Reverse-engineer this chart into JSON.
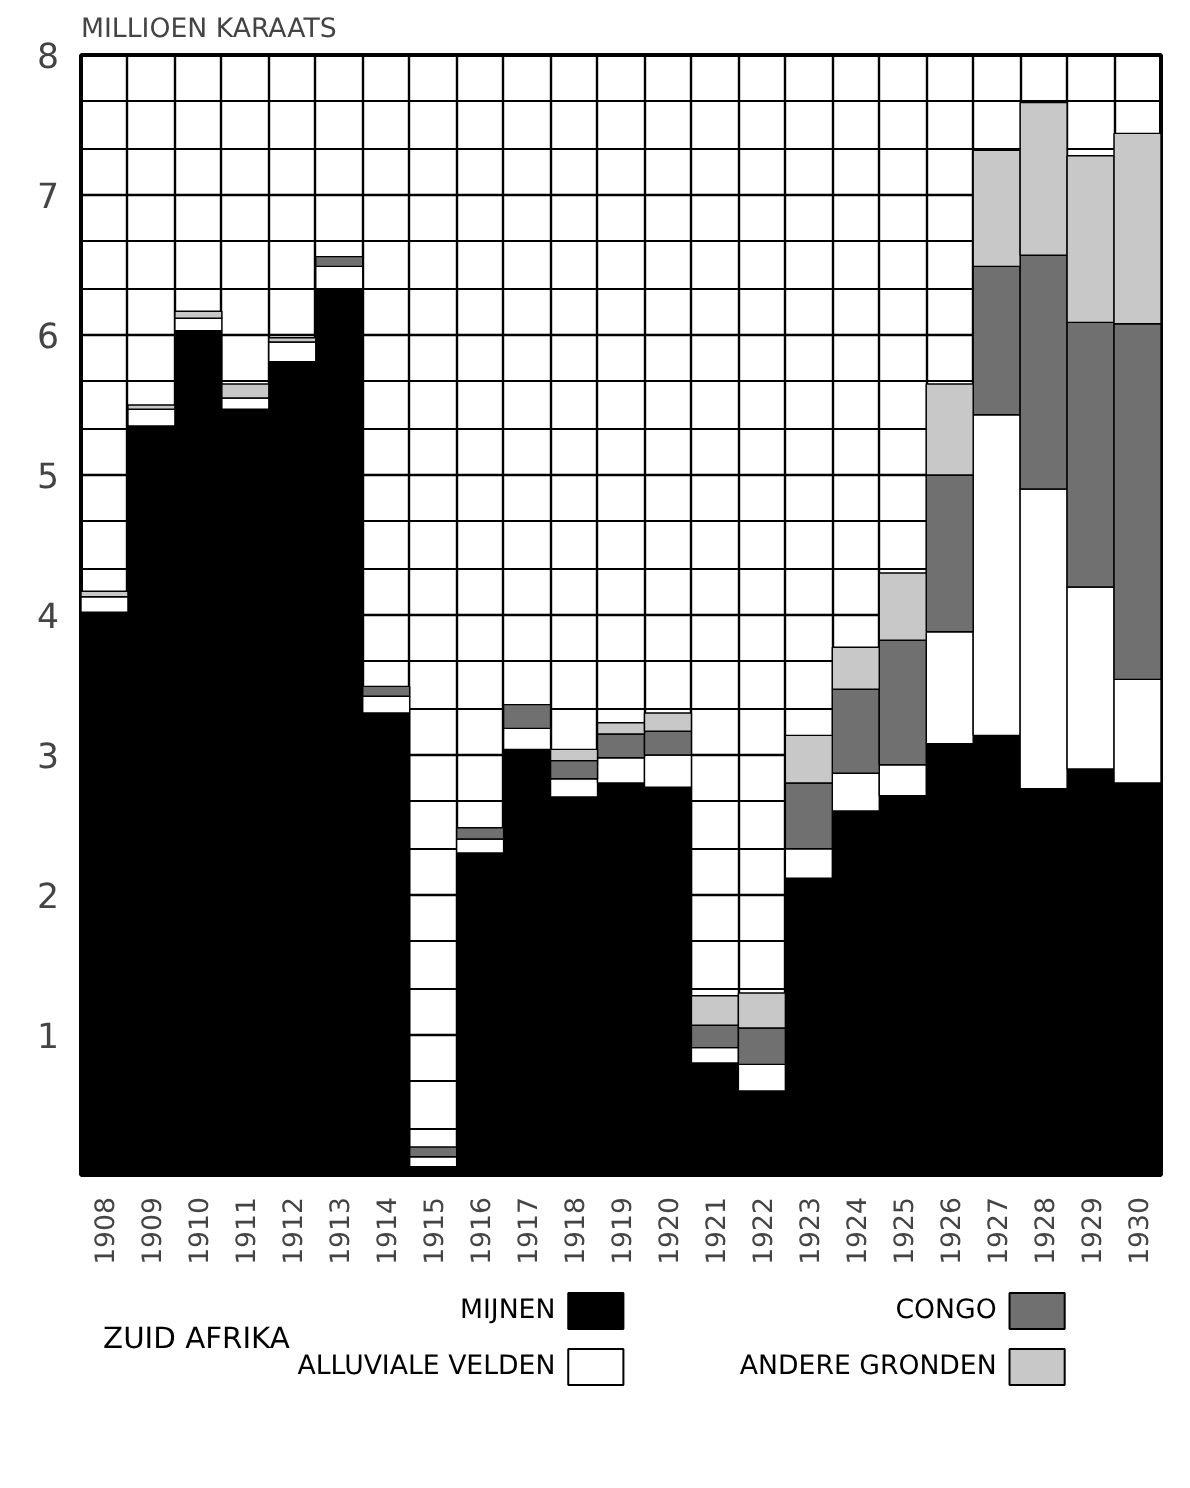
{
  "chart_data": {
    "type": "bar",
    "stacked": true,
    "ylabel": "MILLIOEN KARAATS",
    "legend_title": "ZUID AFRIKA",
    "legend": "bottom",
    "grid": true,
    "ylim": [
      0,
      8
    ],
    "yticks": [
      1,
      2,
      3,
      4,
      5,
      6,
      7,
      8
    ],
    "categories": [
      "1908",
      "1909",
      "1910",
      "1911",
      "1912",
      "1913",
      "1914",
      "1915",
      "1916",
      "1917",
      "1918",
      "1919",
      "1920",
      "1921",
      "1922",
      "1923",
      "1924",
      "1925",
      "1926",
      "1927",
      "1928",
      "1929",
      "1930"
    ],
    "series": [
      {
        "name": "MIJNEN",
        "color": "#000000",
        "values": [
          4.02,
          5.35,
          6.03,
          5.47,
          5.81,
          6.33,
          3.3,
          0.06,
          2.3,
          3.04,
          2.7,
          2.8,
          2.77,
          0.8,
          0.6,
          2.12,
          2.6,
          2.71,
          3.08,
          3.14,
          2.76,
          2.9,
          2.8
        ]
      },
      {
        "name": "ALLUVIALE VELDEN",
        "color": "#ffffff",
        "values": [
          0.11,
          0.12,
          0.09,
          0.08,
          0.14,
          0.16,
          0.12,
          0.07,
          0.1,
          0.15,
          0.13,
          0.18,
          0.23,
          0.11,
          0.19,
          0.21,
          0.27,
          0.22,
          0.8,
          2.29,
          2.14,
          1.3,
          0.74
        ]
      },
      {
        "name": "CONGO",
        "color": "#707070",
        "values": [
          null,
          null,
          null,
          null,
          null,
          0.07,
          0.07,
          0.07,
          0.08,
          0.17,
          0.13,
          0.17,
          0.17,
          0.16,
          0.26,
          0.47,
          0.6,
          0.89,
          1.12,
          1.06,
          1.67,
          1.89,
          2.54
        ]
      },
      {
        "name": "ANDERE GRONDEN",
        "color": "#c8c8c8",
        "values": [
          0.04,
          0.03,
          0.05,
          0.1,
          0.03,
          null,
          null,
          null,
          null,
          null,
          0.08,
          0.08,
          0.13,
          0.21,
          0.25,
          0.34,
          0.3,
          0.48,
          0.65,
          0.83,
          1.09,
          1.19,
          1.36
        ]
      }
    ]
  }
}
